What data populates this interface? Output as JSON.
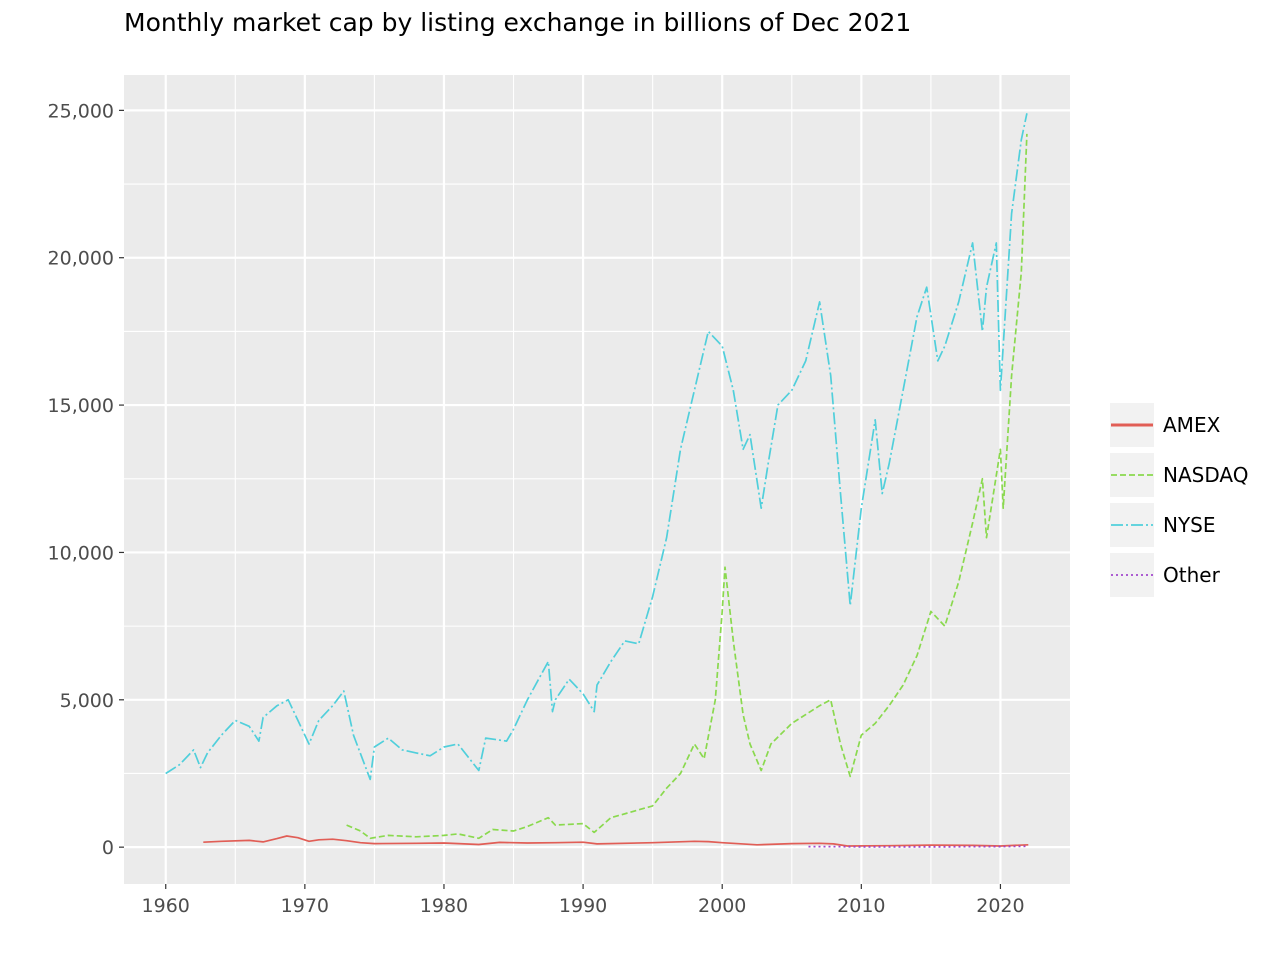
{
  "chart_data": {
    "type": "line",
    "title": "Monthly market cap by listing exchange in billions of Dec 2021",
    "xlabel": "",
    "ylabel": "",
    "xlim": [
      1957,
      2025
    ],
    "ylim": [
      -1250,
      26200
    ],
    "x_ticks": [
      1960,
      1970,
      1980,
      1990,
      2000,
      2010,
      2020
    ],
    "x_tick_labels": [
      "1960",
      "1970",
      "1980",
      "1990",
      "2000",
      "2010",
      "2020"
    ],
    "y_ticks": [
      0,
      5000,
      10000,
      15000,
      20000,
      25000
    ],
    "y_tick_labels": [
      "0",
      "5,000",
      "10,000",
      "15,000",
      "20,000",
      "25,000"
    ],
    "grid": true,
    "legend_position": "right",
    "series": [
      {
        "name": "AMEX",
        "color": "#E15E56",
        "dash": "",
        "x": [
          1962.7,
          1964,
          1966,
          1967,
          1968,
          1968.7,
          1969.5,
          1970.3,
          1971,
          1972,
          1973,
          1974,
          1975,
          1978,
          1980,
          1982.5,
          1984,
          1986,
          1988,
          1990,
          1991,
          1995,
          1998,
          1999,
          2000,
          2002.5,
          2005,
          2007,
          2008,
          2009,
          2012,
          2015,
          2018,
          2020,
          2022
        ],
        "y": [
          170,
          200,
          230,
          180,
          290,
          380,
          320,
          200,
          250,
          270,
          220,
          150,
          120,
          130,
          140,
          90,
          160,
          140,
          150,
          170,
          110,
          150,
          200,
          190,
          150,
          80,
          120,
          130,
          110,
          40,
          50,
          70,
          60,
          40,
          80
        ]
      },
      {
        "name": "NASDAQ",
        "color": "#8AD94E",
        "dash": "6,3",
        "x": [
          1973,
          1974,
          1974.7,
          1976,
          1978,
          1980,
          1981,
          1982.5,
          1983.5,
          1985,
          1986,
          1987.5,
          1988,
          1990,
          1990.8,
          1992,
          1993.5,
          1995,
          1996,
          1997,
          1998,
          1998.7,
          1999.5,
          2000,
          2000.2,
          2000.8,
          2001.5,
          2002,
          2002.8,
          2003.5,
          2005,
          2007,
          2007.8,
          2008.5,
          2009.2,
          2010,
          2011,
          2012,
          2013,
          2014,
          2015,
          2016,
          2017,
          2018,
          2018.7,
          2019,
          2020,
          2020.2,
          2020.8,
          2021.5,
          2021.9
        ],
        "y": [
          750,
          550,
          300,
          400,
          350,
          400,
          450,
          300,
          600,
          550,
          700,
          1000,
          750,
          800,
          500,
          1000,
          1200,
          1400,
          2000,
          2500,
          3500,
          3000,
          5000,
          8000,
          9500,
          7000,
          4500,
          3500,
          2600,
          3500,
          4200,
          4800,
          5000,
          3500,
          2400,
          3800,
          4200,
          4800,
          5500,
          6500,
          8000,
          7500,
          9000,
          11000,
          12500,
          10500,
          13500,
          11500,
          16000,
          19500,
          24200
        ]
      },
      {
        "name": "NYSE",
        "color": "#50CFDB",
        "dash": "12,3,2,3",
        "x": [
          1960,
          1961,
          1962,
          1962.5,
          1963,
          1964,
          1965,
          1966,
          1966.7,
          1967,
          1968,
          1968.8,
          1969.5,
          1970.3,
          1971,
          1972,
          1972.8,
          1973.5,
          1974.7,
          1975,
          1976,
          1977,
          1978,
          1979,
          1980,
          1981,
          1982.5,
          1983,
          1984.5,
          1985,
          1986,
          1987.5,
          1987.8,
          1988,
          1989,
          1990,
          1990.8,
          1991,
          1992,
          1993,
          1994,
          1995,
          1996,
          1997,
          1998,
          1999,
          2000,
          2000.8,
          2001.5,
          2002,
          2002.8,
          2003.3,
          2004,
          2005,
          2006,
          2007,
          2007.8,
          2008.5,
          2009.2,
          2010,
          2011,
          2011.5,
          2012,
          2013,
          2014,
          2014.7,
          2015.5,
          2016,
          2017,
          2018,
          2018.7,
          2019,
          2019.7,
          2020,
          2020.2,
          2020.8,
          2021.5,
          2021.9
        ],
        "y": [
          2500,
          2800,
          3300,
          2700,
          3200,
          3800,
          4300,
          4100,
          3600,
          4400,
          4800,
          5000,
          4300,
          3500,
          4300,
          4800,
          5300,
          3800,
          2300,
          3400,
          3700,
          3300,
          3200,
          3100,
          3400,
          3500,
          2600,
          3700,
          3600,
          4000,
          5000,
          6300,
          4600,
          5000,
          5700,
          5200,
          4600,
          5500,
          6300,
          7000,
          6900,
          8500,
          10500,
          13500,
          15500,
          17500,
          17000,
          15500,
          13500,
          14000,
          11500,
          13000,
          15000,
          15500,
          16500,
          18500,
          16000,
          12000,
          8200,
          11500,
          14500,
          12000,
          13000,
          15500,
          18000,
          19000,
          16500,
          17000,
          18500,
          20500,
          17500,
          19000,
          20500,
          15500,
          17000,
          21500,
          24000,
          24900
        ]
      },
      {
        "name": "Other",
        "color": "#A347CE",
        "dash": "2,3",
        "x": [
          2006.2,
          2008,
          2010,
          2012,
          2014,
          2016,
          2018,
          2020,
          2022
        ],
        "y": [
          20,
          20,
          10,
          10,
          10,
          10,
          20,
          20,
          30
        ]
      }
    ]
  }
}
